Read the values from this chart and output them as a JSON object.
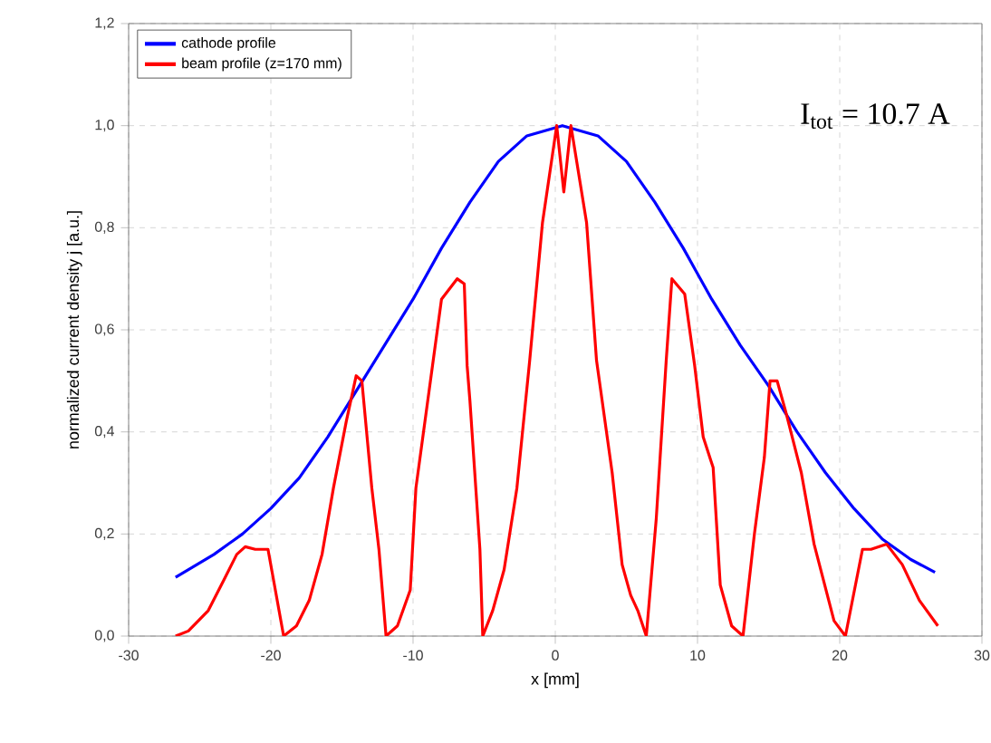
{
  "chart_data": {
    "type": "line",
    "xlabel": "x [mm]",
    "ylabel": "normalized current density j [a.u.]",
    "xlim": [
      -30,
      30
    ],
    "xticks": [
      -30,
      -20,
      -10,
      0,
      10,
      20,
      30
    ],
    "ylim": [
      0,
      1.2
    ],
    "yticks": [
      {
        "value": 0,
        "label": "0,0"
      },
      {
        "value": 0.2,
        "label": "0,2"
      },
      {
        "value": 0.4,
        "label": "0,4"
      },
      {
        "value": 0.6,
        "label": "0,6"
      },
      {
        "value": 0.8,
        "label": "0,8"
      },
      {
        "value": 1.0,
        "label": "1,0"
      },
      {
        "value": 1.2,
        "label": "1,2"
      }
    ],
    "grid": true,
    "legend": "top left",
    "marker": "none",
    "line_style": "solid",
    "annotations": [
      "I$_{tot}$ = 10.7 A"
    ],
    "series": [
      {
        "name": "cathode profile",
        "color": "#0000ff",
        "x": [
          -26.7,
          -24,
          -22,
          -20,
          -18,
          -16,
          -14,
          -12,
          -10,
          -8,
          -6,
          -4,
          -2,
          0.5,
          3,
          5,
          7,
          9,
          11,
          13,
          15,
          17,
          19,
          21,
          23,
          25,
          26.7
        ],
        "values": [
          0.115,
          0.16,
          0.2,
          0.25,
          0.31,
          0.39,
          0.48,
          0.57,
          0.66,
          0.76,
          0.85,
          0.93,
          0.98,
          1.0,
          0.98,
          0.93,
          0.85,
          0.76,
          0.66,
          0.57,
          0.49,
          0.4,
          0.32,
          0.25,
          0.19,
          0.15,
          0.125
        ]
      },
      {
        "name": "beam profile (z=170 mm)",
        "color": "#ff0000",
        "x": [
          -26.7,
          -25.8,
          -24.4,
          -23.3,
          -22.4,
          -21.8,
          -21.1,
          -20.2,
          -19.1,
          -18.2,
          -17.3,
          -16.4,
          -15.6,
          -14.7,
          -14.0,
          -13.6,
          -12.9,
          -12.4,
          -11.9,
          -11.1,
          -10.2,
          -9.8,
          -8.0,
          -6.9,
          -6.4,
          -6.2,
          -6.0,
          -5.3,
          -5.1,
          -4.4,
          -3.6,
          -2.7,
          -1.8,
          -0.9,
          0.1,
          0.6,
          1.1,
          2.2,
          2.9,
          4.0,
          4.7,
          5.3,
          5.8,
          6.4,
          7.1,
          7.8,
          8.2,
          9.1,
          9.8,
          10.4,
          11.1,
          11.6,
          12.4,
          13.2,
          14.0,
          14.7,
          15.1,
          15.6,
          16.2,
          17.3,
          18.2,
          19.6,
          20.4,
          21.6,
          22.2,
          23.3,
          24.4,
          25.6,
          26.9
        ],
        "values": [
          0.0,
          0.01,
          0.05,
          0.11,
          0.16,
          0.175,
          0.17,
          0.17,
          0.0,
          0.02,
          0.07,
          0.16,
          0.29,
          0.42,
          0.51,
          0.5,
          0.29,
          0.17,
          0.0,
          0.02,
          0.09,
          0.29,
          0.66,
          0.7,
          0.69,
          0.53,
          0.46,
          0.17,
          0.0,
          0.05,
          0.13,
          0.29,
          0.54,
          0.81,
          1.0,
          0.87,
          1.0,
          0.81,
          0.54,
          0.32,
          0.14,
          0.08,
          0.05,
          0.0,
          0.23,
          0.54,
          0.7,
          0.67,
          0.53,
          0.39,
          0.33,
          0.1,
          0.02,
          0.0,
          0.2,
          0.35,
          0.5,
          0.5,
          0.44,
          0.32,
          0.18,
          0.03,
          0.0,
          0.17,
          0.17,
          0.18,
          0.14,
          0.07,
          0.02
        ]
      }
    ]
  }
}
